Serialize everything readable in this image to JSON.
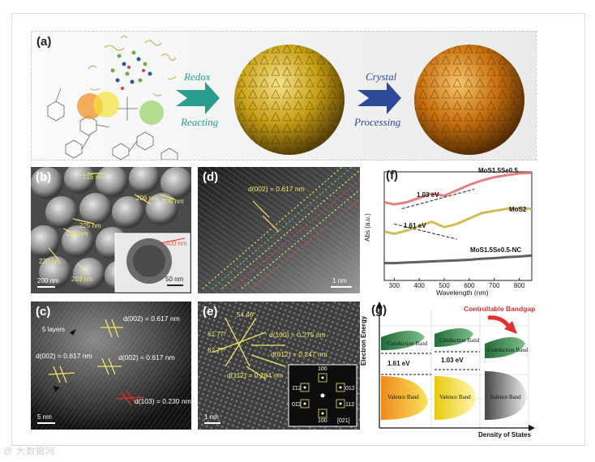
{
  "panel_a": {
    "label": "(a)",
    "step1_top": "Redox",
    "step1_bottom": "Reacting",
    "step2_top": "Crystal",
    "step2_bottom": "Processing",
    "colors": {
      "gold": "#d9b21a",
      "orange": "#d97a14",
      "arrow1": "#2a9d8f",
      "arrow2": "#2c4a9a"
    }
  },
  "panel_b": {
    "label": "(b)",
    "annotations": [
      "215 nm",
      "206 nm",
      "205 nm",
      "225 nm",
      "201 nm",
      "220 nm",
      "203 nm",
      "400 nm"
    ],
    "scale_main": "200 nm",
    "scale_inset": "50 nm"
  },
  "panel_c": {
    "label": "(c)",
    "layers": "5 layers",
    "d1": "d(002) = 0.617 nm",
    "d2": "d(002) = 0.617 nm",
    "d3": "d(002) = 0.617 nm",
    "d4": "d(103) = 0.230 nm",
    "scale": "5 nm"
  },
  "panel_d": {
    "label": "(d)",
    "d": "d(002) = 0.617 nm",
    "scale": "1 nm"
  },
  "panel_e": {
    "label": "(e)",
    "angle1": "54.46°",
    "angle2": "62.77°",
    "angle3": "62.77°",
    "d1": "d(100) = 0.275 nm",
    "d2": "d(01̄2) = 0.247 nm",
    "d3": "d(11̄2) = 0.284 nm",
    "fft": [
      "100",
      "1̄12",
      "012",
      "01̄2",
      "112",
      "100",
      "[021]"
    ],
    "scale": "1 nm"
  },
  "panel_f": {
    "label": "(f)",
    "ylabel": "Abs (a.u.)",
    "xlabel": "Wavelength (nm)",
    "xticks": [
      "300",
      "400",
      "500",
      "600",
      "700",
      "800"
    ],
    "curve1": "MoS1.5Se0.5",
    "curve2": "MoS2",
    "curve3": "MoS1.5Se0.5-NC",
    "gap1": "1.03 eV",
    "gap2": "1.61 eV"
  },
  "panel_g": {
    "label": "(g)",
    "title": "Controllable Bandgap",
    "ylabel": "Electron Energy",
    "xlabel": "Density of States",
    "conduction": "Conduction Band",
    "valence": "Valence Band",
    "gap1": "1.61 eV",
    "gap2": "1.03 eV"
  },
  "chart_data": {
    "type": "line",
    "title": "",
    "xlabel": "Wavelength (nm)",
    "ylabel": "Abs (a.u.)",
    "xlim": [
      260,
      850
    ],
    "ylim": [
      0,
      1
    ],
    "series": [
      {
        "name": "MoS1.5Se0.5",
        "x": [
          260,
          300,
          350,
          400,
          450,
          500,
          550,
          600,
          650,
          700,
          750,
          800,
          850
        ],
        "y": [
          0.72,
          0.7,
          0.72,
          0.76,
          0.8,
          0.78,
          0.83,
          0.88,
          0.92,
          0.95,
          0.97,
          0.985,
          0.99
        ]
      },
      {
        "name": "MoS2",
        "x": [
          260,
          300,
          350,
          400,
          450,
          500,
          550,
          600,
          650,
          700,
          750,
          800,
          850
        ],
        "y": [
          0.45,
          0.43,
          0.46,
          0.5,
          0.54,
          0.49,
          0.52,
          0.57,
          0.62,
          0.64,
          0.66,
          0.665,
          0.66
        ]
      },
      {
        "name": "MoS1.5Se0.5-NC",
        "x": [
          260,
          300,
          350,
          400,
          450,
          500,
          550,
          600,
          650,
          700,
          750,
          800,
          850
        ],
        "y": [
          0.16,
          0.16,
          0.165,
          0.17,
          0.175,
          0.18,
          0.185,
          0.19,
          0.2,
          0.205,
          0.215,
          0.22,
          0.23
        ]
      }
    ],
    "annotations": [
      "1.03 eV",
      "1.61 eV"
    ]
  },
  "footer": "@ 大数据网"
}
